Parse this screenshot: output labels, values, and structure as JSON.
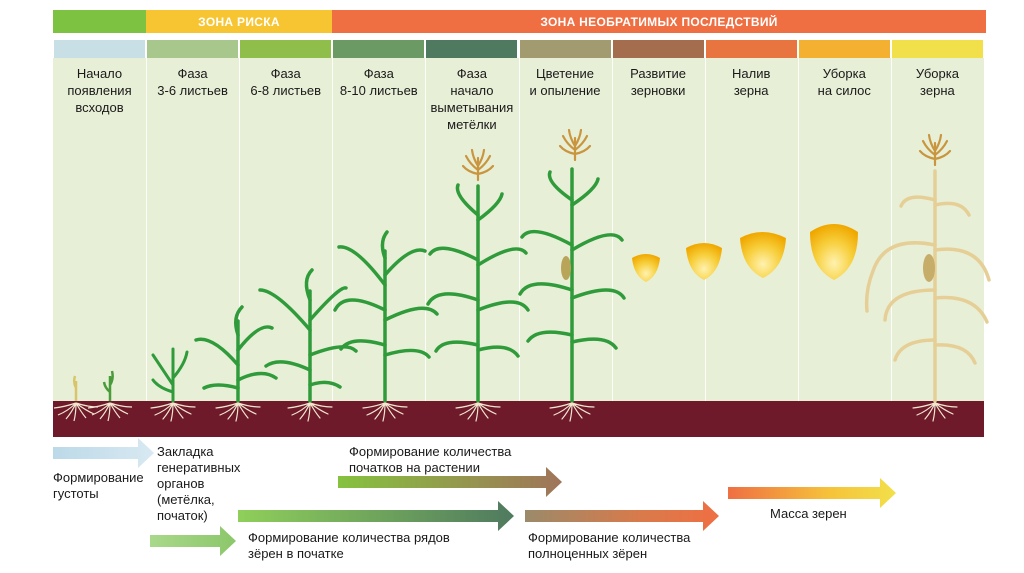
{
  "zones": {
    "risk": "ЗОНА РИСКА",
    "irreversible": "ЗОНА НЕОБРАТИМЫХ ПОСЛЕДСТВИЙ"
  },
  "stages": [
    {
      "label": "Начало\nпоявления\nвсходов",
      "color": "#c9dfe6"
    },
    {
      "label": "Фаза\n3-6 листьев",
      "color": "#a8c78c"
    },
    {
      "label": "Фаза\n6-8 листьев",
      "color": "#8fbf4a"
    },
    {
      "label": "Фаза\n8-10 листьев",
      "color": "#6b9a65"
    },
    {
      "label": "Фаза\nначало\nвыметывания\nметёлки",
      "color": "#4f7a5f"
    },
    {
      "label": "Цветение\nи опыление",
      "color": "#a39b70"
    },
    {
      "label": "Развитие\nзерновки",
      "color": "#a46e4e"
    },
    {
      "label": "Налив\nзерна",
      "color": "#e8743f"
    },
    {
      "label": "Уборка\nна силос",
      "color": "#f4b131"
    },
    {
      "label": "Уборка\nзерна",
      "color": "#f2e04a"
    }
  ],
  "processes": {
    "density": "Формирование\nгустоты",
    "generative": "Закладка\nгенеративных\nорганов\n(метёлка,\nпочаток)",
    "rows": "Формирование количества рядов\nзёрен в початке",
    "ears": "Формирование количества\nпочатков на растении",
    "full_grains": "Формирование количества\nполноценных зёрен",
    "mass": "Масса зерен"
  },
  "colors": {
    "zone_safe": "#7ec242",
    "zone_risk": "#f7c532",
    "zone_irreversible": "#ef6f43",
    "panel": "#e8efd7",
    "soil": "#6e1a2a",
    "plant_green": "#2f9b3a",
    "plant_dry": "#e3c98a",
    "tassel": "#d4a24a",
    "kernel": "#f2b400"
  },
  "icons": [
    "seedling-icon",
    "corn-plant-icon",
    "corn-tassel-icon",
    "corn-kernel-icon",
    "dry-corn-plant-icon",
    "arrow-icon"
  ]
}
